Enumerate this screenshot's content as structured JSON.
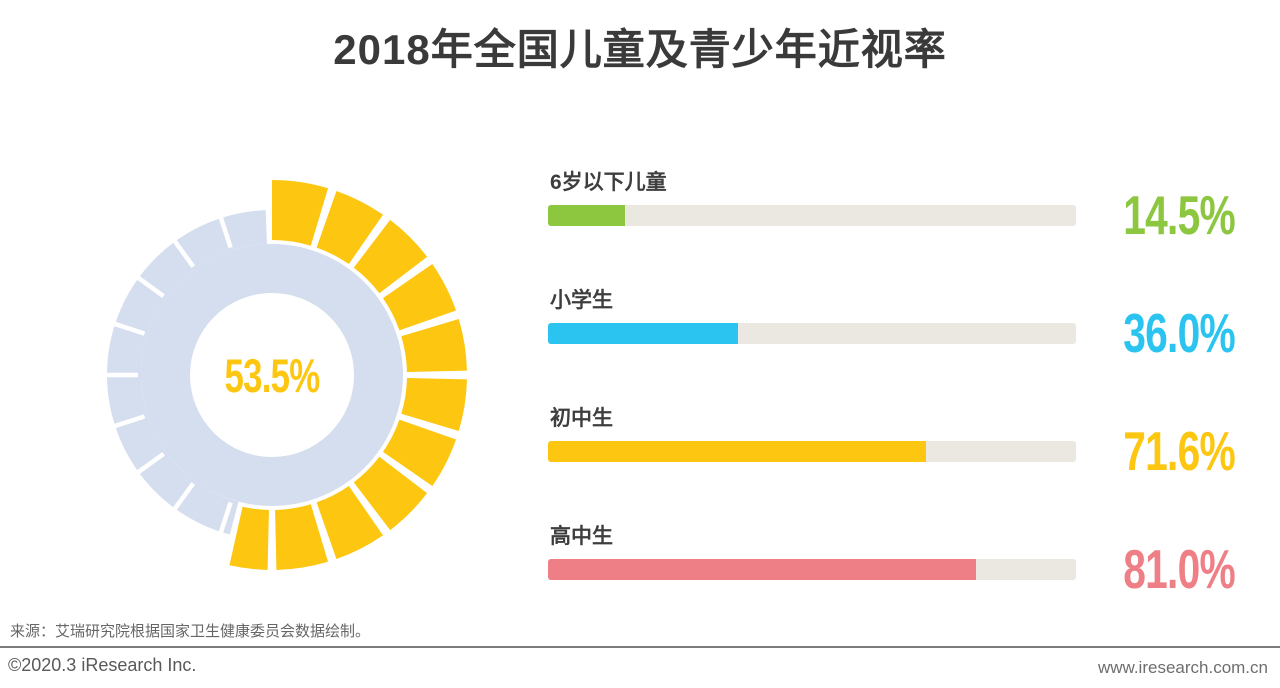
{
  "title": "2018年全国儿童及青少年近视率",
  "chart_data": [
    {
      "type": "pie",
      "subtype": "segmented-donut-gauge",
      "value": 53.5,
      "center_label": "53.5%",
      "segments_per_circle": 20,
      "start_angle_deg": 0,
      "direction": "clockwise",
      "colors": {
        "filled": "#FCC611",
        "rest": "#D5DEEF"
      }
    },
    {
      "type": "bar",
      "orientation": "horizontal",
      "categories": [
        "6岁以下儿童",
        "小学生",
        "初中生",
        "高中生"
      ],
      "values": [
        14.5,
        36.0,
        71.6,
        81.0
      ],
      "value_labels": [
        "14.5%",
        "36.0%",
        "71.6%",
        "81.0%"
      ],
      "colors": [
        "#8DC63F",
        "#2BC4F0",
        "#FCC611",
        "#EF7F87"
      ],
      "track_color": "#EBE8E1",
      "xlim": [
        0,
        100
      ],
      "grid": false,
      "legend": false
    }
  ],
  "source_note": "来源：艾瑞研究院根据国家卫生健康委员会数据绘制。",
  "footer": {
    "left": "©2020.3 iResearch Inc.",
    "right": "www.iresearch.com.cn"
  }
}
